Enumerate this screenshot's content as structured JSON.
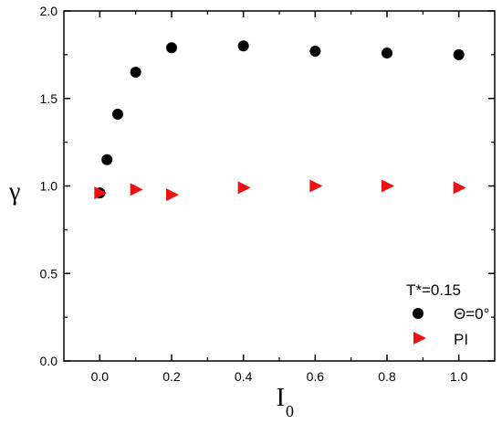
{
  "chart_data": {
    "type": "scatter",
    "xlabel": "I",
    "xlabel_sub": "0",
    "ylabel": "γ",
    "xlim": [
      -0.1,
      1.1
    ],
    "ylim": [
      0.0,
      2.0
    ],
    "xticks": [
      0.0,
      0.2,
      0.4,
      0.6,
      0.8,
      1.0
    ],
    "yticks": [
      0.0,
      0.5,
      1.0,
      1.5,
      2.0
    ],
    "xtick_labels": [
      "0.0",
      "0.2",
      "0.4",
      "0.6",
      "0.8",
      "1.0"
    ],
    "ytick_labels": [
      "0.0",
      "0.5",
      "1.0",
      "1.5",
      "2.0"
    ],
    "grid": false,
    "legend_position": "bottom-right",
    "legend_title": "T*=0.15",
    "series": [
      {
        "name": "Θ=0°",
        "marker": "circle",
        "color": "#000000",
        "x": [
          0.0,
          0.02,
          0.05,
          0.1,
          0.2,
          0.4,
          0.6,
          0.8,
          1.0
        ],
        "y": [
          0.96,
          1.15,
          1.41,
          1.65,
          1.79,
          1.8,
          1.77,
          1.76,
          1.75
        ]
      },
      {
        "name": "PI",
        "marker": "triangle-right",
        "color": "#ee1111",
        "x": [
          0.0,
          0.1,
          0.2,
          0.4,
          0.6,
          0.8,
          1.0
        ],
        "y": [
          0.96,
          0.98,
          0.95,
          0.99,
          1.0,
          1.0,
          0.99
        ]
      }
    ]
  }
}
